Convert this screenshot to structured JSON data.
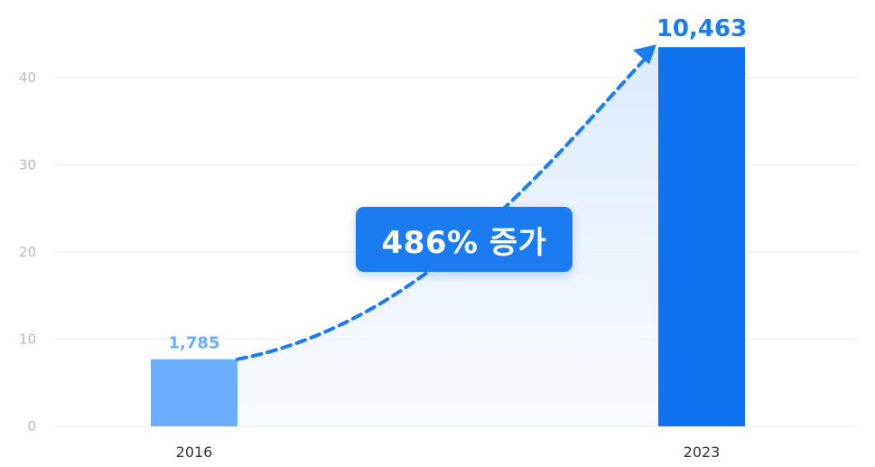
{
  "chart_data": {
    "type": "bar",
    "categories": [
      "2016",
      "2023"
    ],
    "values": [
      7.7,
      43.5
    ],
    "data_labels": [
      "1,785",
      "10,463"
    ],
    "ylim": [
      0,
      44
    ],
    "yticks": [
      0,
      10,
      20,
      30,
      40
    ],
    "grid": true,
    "title": "",
    "xlabel": "",
    "ylabel": "",
    "annotation": "486% 증가",
    "colors": {
      "bar_2016": "#6aaeff",
      "bar_2023": "#0f72f0",
      "label_2016": "#6aaeff",
      "label_2023": "#1a7cf0",
      "arrow": "#1a7cf0",
      "area_fill": "#e3effd",
      "grid": "#eef0f3",
      "tick_text": "#b5b9c0",
      "category_text": "#333333",
      "callout_bg": "#1a7cf0",
      "callout_text": "#ffffff"
    }
  }
}
